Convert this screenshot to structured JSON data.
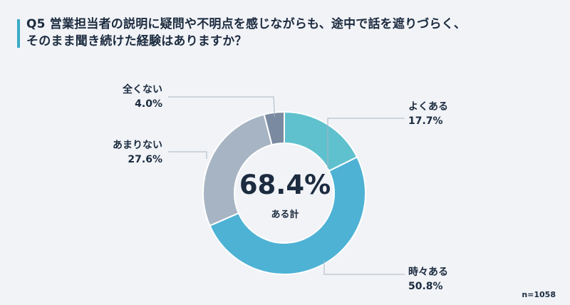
{
  "title": {
    "line1": "Q5 営業担当者の説明に疑問や不明点を感じながらも、途中で話を遮りづらく、",
    "line2": "そのまま聞き続けた経験はありますか？"
  },
  "chart_data": {
    "type": "pie",
    "variant": "donut",
    "categories": [
      "よくある",
      "時々ある",
      "あまりない",
      "全くない"
    ],
    "values": [
      17.7,
      50.8,
      27.6,
      4.0
    ],
    "labels_pct": [
      "17.7%",
      "50.8%",
      "27.6%",
      "4.0%"
    ],
    "colors": [
      "#5fc1cd",
      "#4eb2d5",
      "#a7b4c3",
      "#7a8aa0"
    ],
    "center": {
      "value": "68.4%",
      "caption": "ある計"
    },
    "start_angle_deg": 0,
    "direction": "clockwise"
  },
  "footnote": "n=1058"
}
